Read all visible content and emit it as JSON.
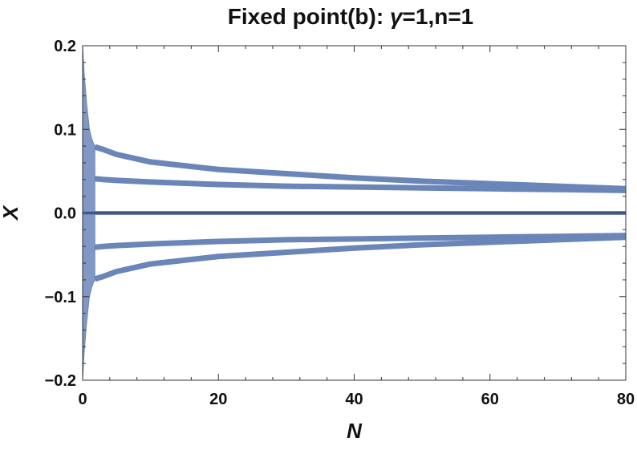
{
  "chart_data": {
    "type": "line",
    "title_prefix": "Fixed point(b): ",
    "title_symbol": "γ",
    "title_suffix": "=1,n=1",
    "xlabel": "N",
    "ylabel": "X",
    "xlim": [
      0,
      80
    ],
    "ylim": [
      -0.2,
      0.2
    ],
    "x_ticks": [
      0,
      20,
      40,
      60,
      80
    ],
    "x_tick_labels": [
      "0",
      "20",
      "40",
      "60",
      "80"
    ],
    "y_ticks": [
      -0.2,
      -0.1,
      0.0,
      0.1,
      0.2
    ],
    "y_tick_labels": [
      "−0.2",
      "−0.1",
      "0.0",
      "0.1",
      "0.2"
    ],
    "x_minor_step": 4,
    "y_minor_step": 0.02,
    "grid": false,
    "colors": {
      "series": "#6a86b8",
      "zero_line": "#1f2a44",
      "frame": "#333333"
    },
    "transient": {
      "x_range": [
        0,
        1.8
      ],
      "envelope_x": [
        0,
        0.2,
        0.4,
        0.6,
        0.8,
        1.0,
        1.3,
        1.6,
        1.8
      ],
      "envelope_y": [
        0.2,
        0.17,
        0.15,
        0.13,
        0.115,
        0.1,
        0.09,
        0.083,
        0.08
      ]
    },
    "series": [
      {
        "x": [
          1.8,
          3,
          5,
          10,
          20,
          30,
          40,
          50,
          60,
          70,
          80
        ],
        "values": [
          0.079,
          0.076,
          0.07,
          0.061,
          0.052,
          0.047,
          0.042,
          0.038,
          0.035,
          0.032,
          0.029
        ]
      },
      {
        "x": [
          1.8,
          3,
          5,
          10,
          20,
          30,
          40,
          50,
          60,
          70,
          80
        ],
        "values": [
          0.041,
          0.04,
          0.039,
          0.037,
          0.034,
          0.032,
          0.031,
          0.03,
          0.029,
          0.028,
          0.027
        ]
      },
      {
        "x": [
          0,
          80
        ],
        "values": [
          0,
          0
        ]
      },
      {
        "x": [
          1.8,
          3,
          5,
          10,
          20,
          30,
          40,
          50,
          60,
          70,
          80
        ],
        "values": [
          -0.041,
          -0.04,
          -0.039,
          -0.037,
          -0.034,
          -0.032,
          -0.031,
          -0.03,
          -0.029,
          -0.028,
          -0.027
        ]
      },
      {
        "x": [
          1.8,
          3,
          5,
          10,
          20,
          30,
          40,
          50,
          60,
          70,
          80
        ],
        "values": [
          -0.079,
          -0.076,
          -0.07,
          -0.061,
          -0.052,
          -0.047,
          -0.042,
          -0.038,
          -0.035,
          -0.032,
          -0.029
        ]
      }
    ]
  }
}
